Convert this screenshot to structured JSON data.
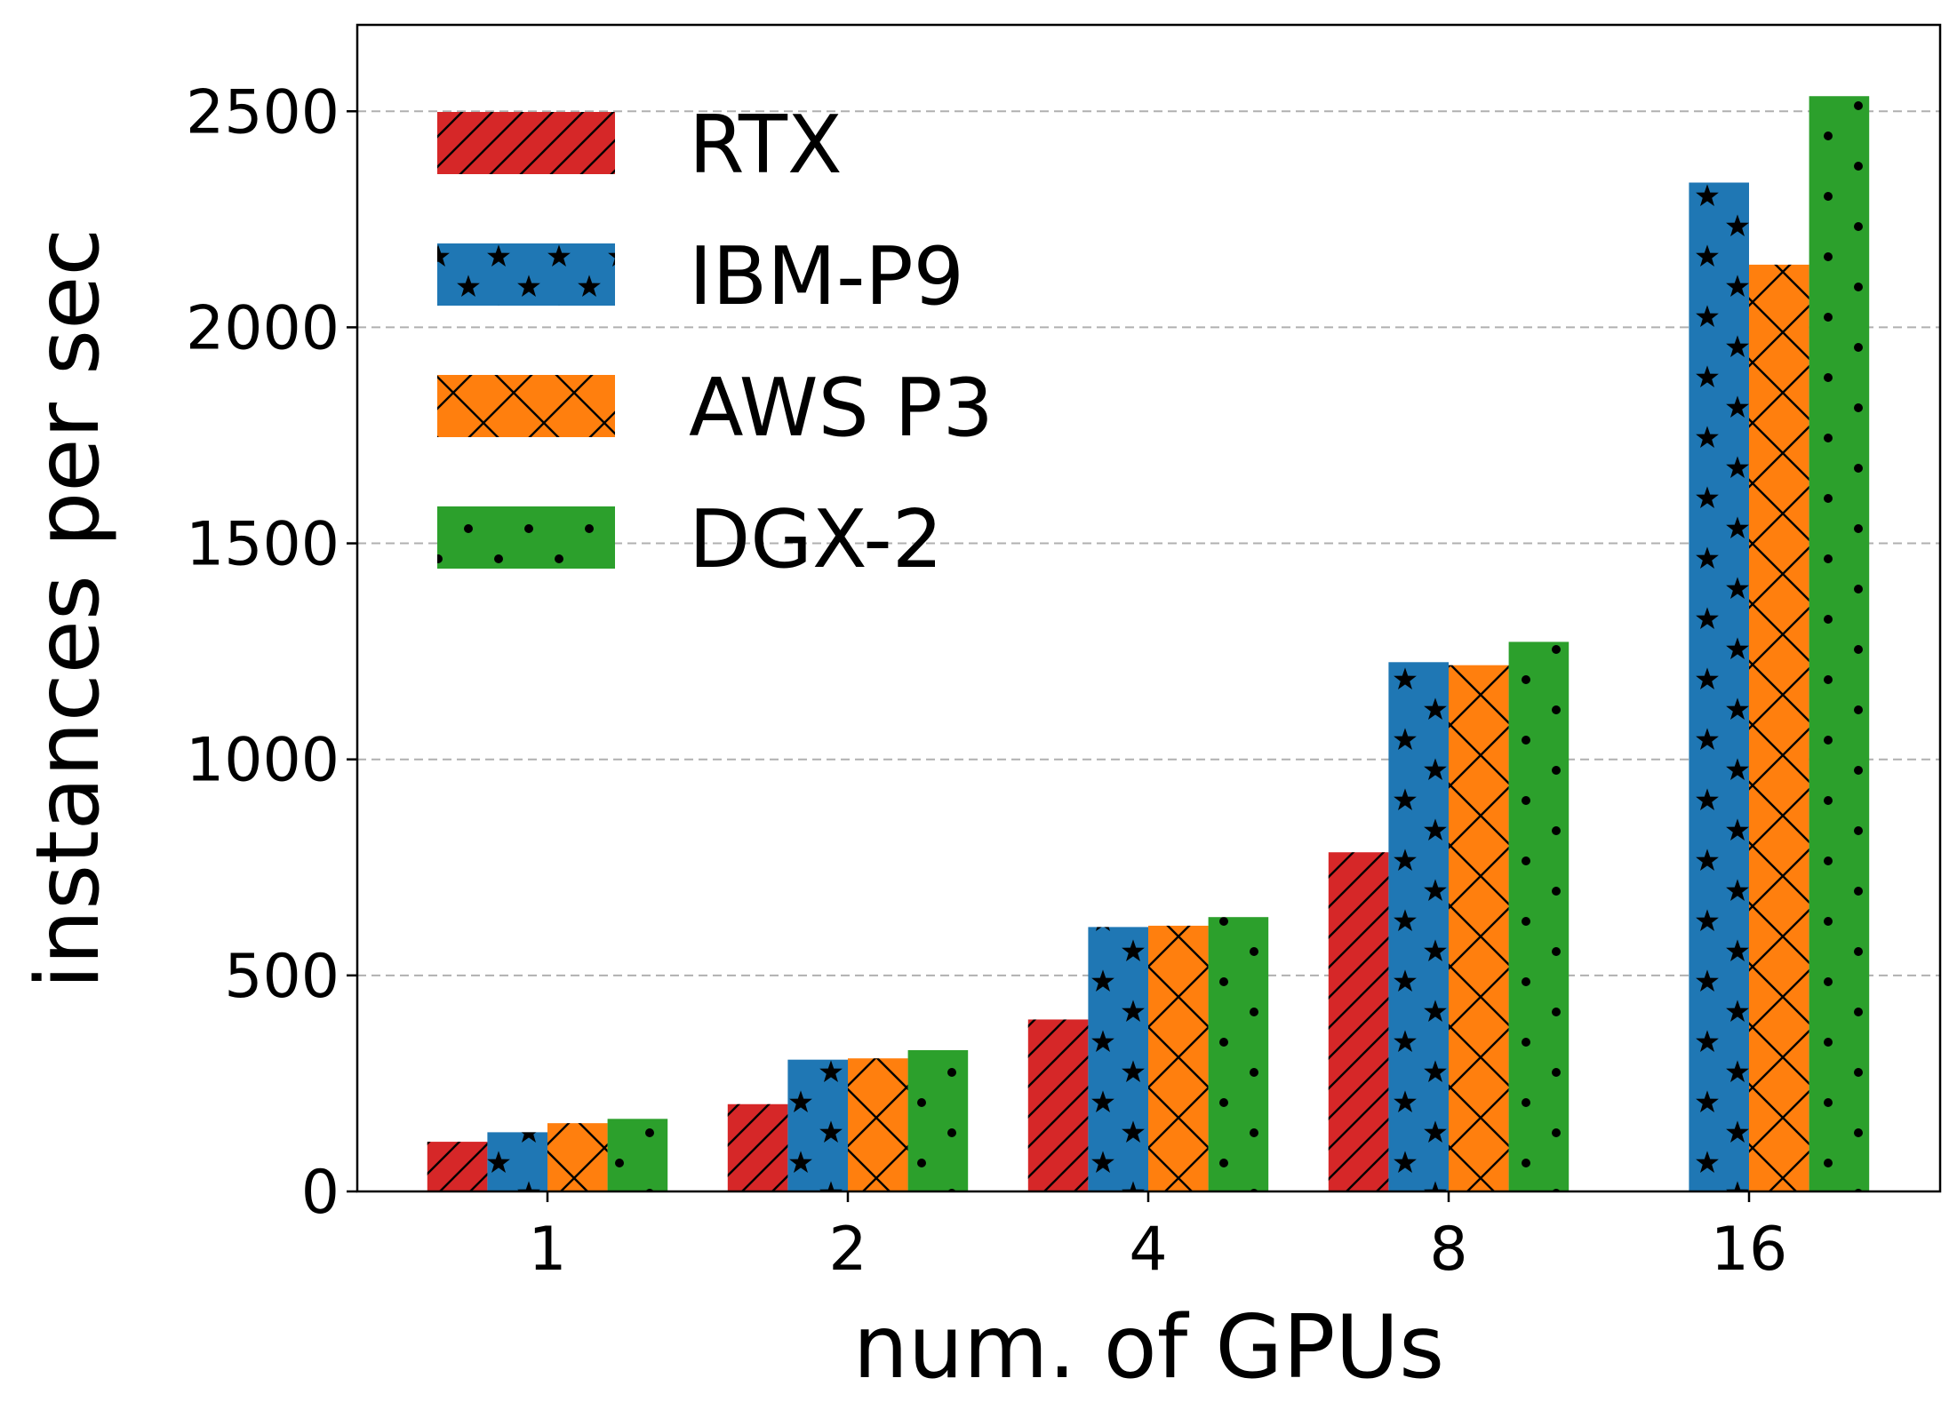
{
  "chart_data": {
    "type": "bar",
    "title": "",
    "xlabel": "num. of GPUs",
    "ylabel": "instances per sec",
    "categories": [
      "1",
      "2",
      "4",
      "8",
      "16"
    ],
    "ylim": [
      0,
      2700
    ],
    "yticks": [
      0,
      500,
      1000,
      1500,
      2000,
      2500
    ],
    "ytick_labels": [
      "0",
      "500",
      "1000",
      "1500",
      "2000",
      "2500"
    ],
    "grid": "y-dashed",
    "legend_position": "top-left",
    "series": [
      {
        "name": "RTX",
        "color": "#d62728",
        "pattern": "diagonal-hatch",
        "values": [
          115,
          202,
          398,
          785,
          null
        ]
      },
      {
        "name": "IBM-P9",
        "color": "#1f77b4",
        "pattern": "stars",
        "values": [
          137,
          305,
          612,
          1225,
          2335
        ]
      },
      {
        "name": "AWS P3",
        "color": "#ff7f0e",
        "pattern": "cross-hatch",
        "values": [
          158,
          308,
          615,
          1218,
          2145
        ]
      },
      {
        "name": "DGX-2",
        "color": "#2ca02c",
        "pattern": "dots",
        "values": [
          168,
          327,
          635,
          1272,
          2535
        ]
      }
    ]
  }
}
